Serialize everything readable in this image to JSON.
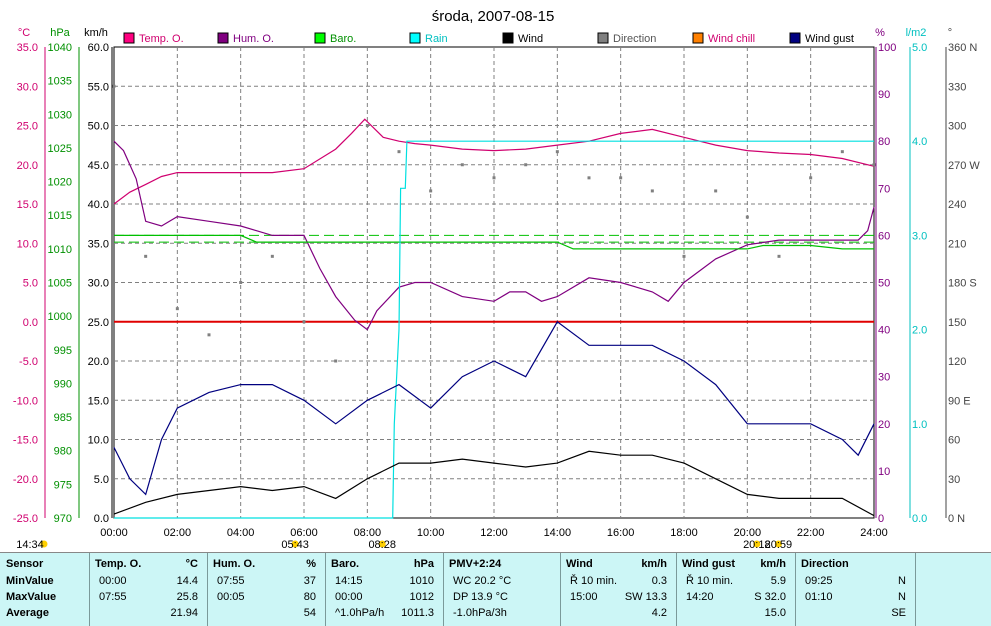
{
  "chart_data": {
    "type": "line",
    "title": "środa, 2007-08-15",
    "x_ticks": [
      "00:00",
      "02:00",
      "04:00",
      "06:00",
      "08:00",
      "10:00",
      "12:00",
      "14:00",
      "16:00",
      "18:00",
      "20:00",
      "22:00",
      "24:00"
    ],
    "left_axes": [
      {
        "unit": "°C",
        "color": "#d0006f",
        "ticks": [
          "35.0",
          "30.0",
          "25.0",
          "20.0",
          "15.0",
          "10.0",
          "5.0",
          "0.0",
          "-5.0",
          "-10.0",
          "-15.0",
          "-20.0",
          "-25.0"
        ]
      },
      {
        "unit": "hPa",
        "color": "#009000",
        "ticks": [
          "1040",
          "1035",
          "1030",
          "1025",
          "1020",
          "1015",
          "1010",
          "1005",
          "1000",
          "995",
          "990",
          "985",
          "980",
          "975",
          "970"
        ]
      },
      {
        "unit": "km/h",
        "color": "#000000",
        "ticks": [
          "60.0",
          "55.0",
          "50.0",
          "45.0",
          "40.0",
          "35.0",
          "30.0",
          "25.0",
          "20.0",
          "15.0",
          "10.0",
          "5.0",
          "0.0"
        ]
      }
    ],
    "right_axes": [
      {
        "unit": "%",
        "color": "#800080",
        "ticks": [
          "100",
          "90",
          "80",
          "70",
          "60",
          "50",
          "40",
          "30",
          "20",
          "10",
          "0"
        ]
      },
      {
        "unit": "l/m2",
        "color": "#00c0c0",
        "ticks": [
          "5.0",
          "4.0",
          "3.0",
          "2.0",
          "1.0",
          "0.0"
        ]
      },
      {
        "unit": "°",
        "color": "#444444",
        "ticks": [
          "360 N",
          "330",
          "300",
          "270 W",
          "240",
          "210",
          "180 S",
          "150",
          "120",
          "90 E",
          "60",
          "30",
          "0 N"
        ]
      }
    ],
    "legend": [
      {
        "name": "Temp. O.",
        "color": "#ff0080"
      },
      {
        "name": "Hum. O.",
        "color": "#800080"
      },
      {
        "name": "Baro.",
        "color": "#00ff00"
      },
      {
        "name": "Rain",
        "color": "#00ffff"
      },
      {
        "name": "Wind",
        "color": "#000000"
      },
      {
        "name": "Direction",
        "color": "#808080"
      },
      {
        "name": "Wind chill",
        "color": "#ff8000"
      },
      {
        "name": "Wind gust",
        "color": "#000080"
      }
    ],
    "series": [
      {
        "name": "Temp. O.",
        "color": "#d0006f",
        "x": [
          0,
          0.5,
          1,
          1.5,
          2,
          3,
          4,
          5,
          6,
          7,
          7.5,
          7.92,
          8.5,
          9,
          9.5,
          10,
          11,
          12,
          13,
          14,
          15,
          16,
          17,
          18,
          19,
          20,
          21,
          22,
          23,
          24
        ],
        "y": [
          15.0,
          16.5,
          17.5,
          18.5,
          19.0,
          19.0,
          19.0,
          19.0,
          19.5,
          22.0,
          24.0,
          25.8,
          23.5,
          23.0,
          22.7,
          22.5,
          22.0,
          21.8,
          22.0,
          22.5,
          23.0,
          24.0,
          24.5,
          23.5,
          22.5,
          21.8,
          21.5,
          21.3,
          20.8,
          19.8
        ]
      },
      {
        "name": "Hum. O.",
        "color": "#800080",
        "x": [
          0,
          0.3,
          0.7,
          1,
          1.5,
          2,
          3,
          4,
          4.5,
          5,
          6,
          6.5,
          7,
          7.6,
          8,
          8.3,
          9,
          9.5,
          10,
          11,
          12,
          12.5,
          13,
          13.5,
          14,
          15,
          16,
          17,
          17.5,
          18,
          19,
          20,
          21,
          22,
          23,
          23.5,
          23.8,
          24
        ],
        "y": [
          80,
          78,
          72,
          63,
          62,
          64,
          63,
          62,
          61,
          60,
          60,
          53,
          47,
          42,
          40,
          44,
          49,
          50,
          50,
          47,
          46,
          48,
          48,
          46,
          47,
          51,
          50,
          48,
          46,
          50,
          55,
          58,
          59,
          59,
          59,
          59,
          61,
          66
        ]
      },
      {
        "name": "Baro.",
        "color": "#00c000",
        "x": [
          0,
          4,
          4.5,
          8,
          9,
          14,
          14.5,
          15,
          16,
          17,
          18,
          20,
          20.5,
          22,
          23,
          24
        ],
        "y": [
          1012,
          1012,
          1011,
          1011,
          1011,
          1011,
          1010,
          1010,
          1010,
          1010,
          1010,
          1010,
          1010.5,
          1010.5,
          1010,
          1010
        ]
      },
      {
        "name": "Rain",
        "color": "#00e0e0",
        "x": [
          0,
          8.8,
          8.85,
          9,
          9.05,
          9.2,
          9.25,
          24
        ],
        "y": [
          0,
          0,
          1.0,
          2.0,
          3.5,
          3.5,
          4.0,
          4.0
        ]
      },
      {
        "name": "Wind",
        "color": "#000000",
        "x": [
          0,
          1,
          2,
          3,
          4,
          5,
          6,
          7,
          8,
          9,
          10,
          11,
          12,
          13,
          14,
          15,
          16,
          17,
          18,
          19,
          20,
          21,
          22,
          23,
          24
        ],
        "y": [
          0.5,
          2,
          3,
          3.5,
          4,
          3.5,
          4,
          2.5,
          5,
          7,
          7,
          7.5,
          7,
          6.5,
          7,
          8.5,
          8,
          8,
          7,
          5,
          3,
          2.5,
          2.5,
          2.5,
          0.3
        ]
      },
      {
        "name": "Wind gust",
        "color": "#000080",
        "x": [
          0,
          0.5,
          1,
          1.5,
          2,
          3,
          4,
          5,
          6,
          7,
          8,
          9,
          10,
          11,
          12,
          13,
          14,
          15,
          16,
          17,
          18,
          19,
          20,
          21,
          22,
          23,
          23.5,
          24
        ],
        "y": [
          9,
          5,
          3,
          10,
          14,
          16,
          17,
          17,
          15,
          12,
          15,
          17,
          14,
          18,
          20,
          18,
          25,
          22,
          22,
          22,
          20,
          17,
          12,
          12,
          12,
          10,
          8,
          12
        ]
      },
      {
        "name": "Direction",
        "color": "#808080",
        "type": "scatter",
        "x": [
          0,
          1,
          2,
          3,
          4,
          5,
          6,
          7,
          8,
          9,
          10,
          11,
          12,
          13,
          14,
          15,
          16,
          17,
          18,
          19,
          20,
          21,
          22,
          23,
          24
        ],
        "y": [
          330,
          200,
          160,
          140,
          180,
          200,
          150,
          120,
          300,
          280,
          250,
          270,
          260,
          270,
          280,
          260,
          260,
          250,
          200,
          250,
          230,
          200,
          260,
          280,
          270
        ]
      }
    ],
    "reference_lines": [
      {
        "value_celsius": 0.0,
        "color": "#e00000"
      },
      {
        "value_hpa": 1012,
        "color": "#00c000",
        "style": "dashed"
      },
      {
        "value_hpa": 1011,
        "color": "#00c000",
        "style": "dashed"
      }
    ]
  },
  "sun_markers": [
    {
      "label": "14:34",
      "x_hours": -1
    },
    {
      "label": "05:43",
      "x_hours": 5.72
    },
    {
      "label": "08:28",
      "x_hours": 8.47
    },
    {
      "label": "20:18",
      "x_hours": 20.3
    },
    {
      "label": "20:59",
      "x_hours": 20.98
    }
  ],
  "stats_table": {
    "row_labels": [
      "Sensor",
      "MinValue",
      "MaxValue",
      "Average"
    ],
    "columns": [
      {
        "header": "Temp. O.",
        "unit": "°C",
        "rows": [
          [
            "00:00",
            "14.4"
          ],
          [
            "07:55",
            "25.8"
          ],
          [
            "",
            "21.94"
          ]
        ]
      },
      {
        "header": "Hum. O.",
        "unit": "%",
        "rows": [
          [
            "07:55",
            "37"
          ],
          [
            "00:05",
            "80"
          ],
          [
            "",
            "54"
          ]
        ]
      },
      {
        "header": "Baro.",
        "unit": "hPa",
        "rows": [
          [
            "14:15",
            "1010"
          ],
          [
            "00:00",
            "1012"
          ],
          [
            "^1.0hPa/h",
            "1011.3"
          ]
        ]
      },
      {
        "header": "PMV+2:24",
        "unit": "",
        "rows": [
          [
            "WC 20.2 °C",
            ""
          ],
          [
            "DP 13.9 °C",
            ""
          ],
          [
            "-1.0hPa/3h",
            ""
          ]
        ]
      },
      {
        "header": "Wind",
        "unit": "km/h",
        "rows": [
          [
            "Ř 10 min.",
            "0.3"
          ],
          [
            "15:00",
            "SW 13.3"
          ],
          [
            "",
            "4.2"
          ]
        ]
      },
      {
        "header": "Wind gust",
        "unit": "km/h",
        "rows": [
          [
            "Ř 10 min.",
            "5.9"
          ],
          [
            "14:20",
            "S 32.0"
          ],
          [
            "",
            "15.0"
          ]
        ]
      },
      {
        "header": "Direction",
        "unit": "",
        "rows": [
          [
            "09:25",
            "N"
          ],
          [
            "01:10",
            "N"
          ],
          [
            "",
            "SE"
          ]
        ]
      }
    ]
  }
}
